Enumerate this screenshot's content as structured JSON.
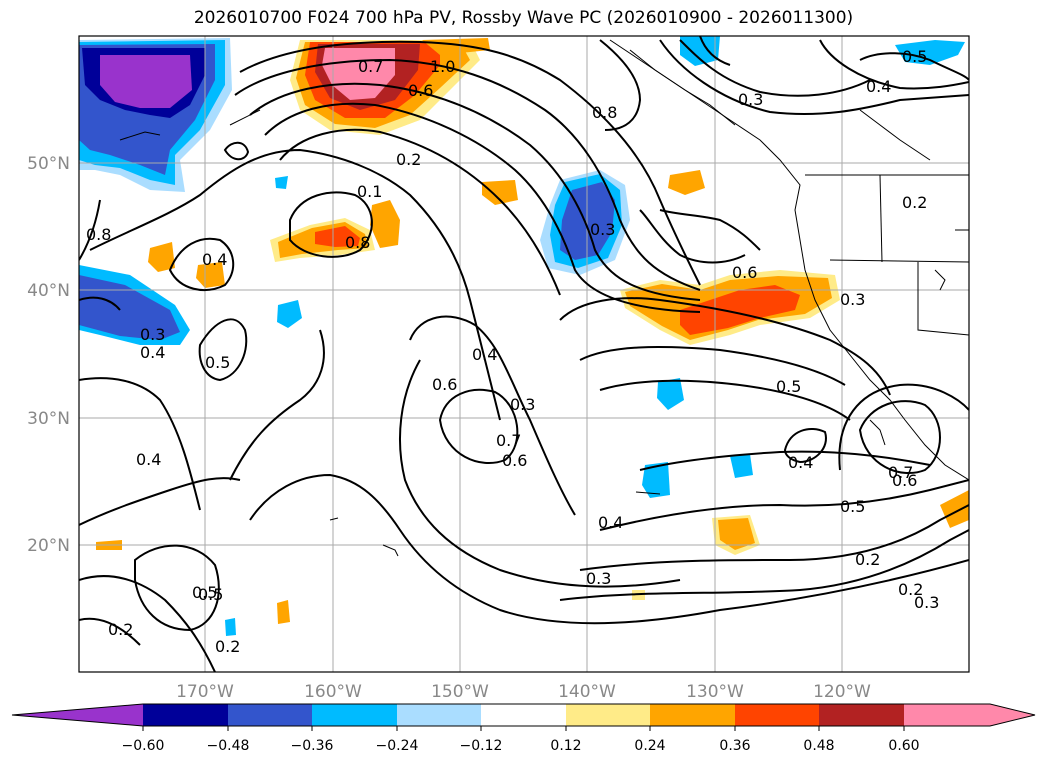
{
  "title": "2026010700 F024 700 hPa PV, Rossby Wave PC (2026010900 - 2026011300)",
  "map": {
    "lat_labels": [
      "50°N",
      "40°N",
      "30°N",
      "20°N"
    ],
    "lon_labels": [
      "170°W",
      "160°W",
      "150°W",
      "140°W",
      "130°W",
      "120°W"
    ],
    "contour_labels": [
      "1.0",
      "0.7",
      "0.6",
      "0.2",
      "0.1",
      "0.8",
      "0.8",
      "0.4",
      "0.8",
      "0.3",
      "0.5",
      "0.4",
      "0.3",
      "0.2",
      "0.3",
      "0.6",
      "0.3",
      "0.4",
      "0.5",
      "0.6",
      "0.4",
      "0.3",
      "0.7",
      "0.6",
      "0.5",
      "0.4",
      "0.7",
      "0.6",
      "0.5",
      "0.4",
      "0.5",
      "0.2",
      "0.2",
      "0.3",
      "0.3",
      "0.4",
      "0.5",
      "0.2",
      "0.2"
    ],
    "colors": {
      "c1": "#9933cc",
      "c2": "#000099",
      "c3": "#3355cc",
      "c4": "#00bbff",
      "c5": "#aaddff",
      "c6": "#ffeb88",
      "c7": "#ffa500",
      "c8": "#ff4400",
      "c9": "#b22222",
      "c10": "#ff88aa"
    }
  },
  "colorbar": {
    "ticks": [
      "−0.60",
      "−0.48",
      "−0.36",
      "−0.24",
      "−0.12",
      "0.12",
      "0.24",
      "0.36",
      "0.48",
      "0.60"
    ]
  }
}
